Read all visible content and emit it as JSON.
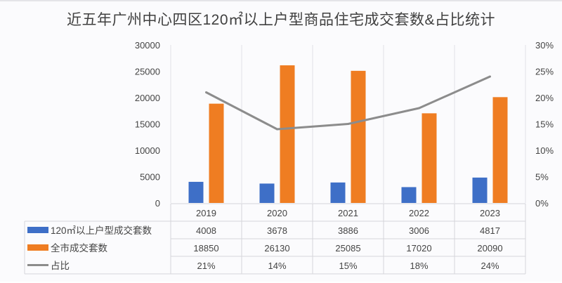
{
  "chart_data": {
    "type": "bar",
    "title": "近五年广州中心四区120㎡以上户型商品住宅成交套数&占比统计",
    "categories": [
      "2019",
      "2020",
      "2021",
      "2022",
      "2023"
    ],
    "series": [
      {
        "name": "120㎡以上户型成交套数",
        "type": "bar",
        "axis": "left",
        "color": "#3e6fc7",
        "values": [
          4008,
          3678,
          3886,
          3006,
          4817
        ],
        "labels": [
          "4008",
          "3678",
          "3886",
          "3006",
          "4817"
        ]
      },
      {
        "name": "全市成交套数",
        "type": "bar",
        "axis": "left",
        "color": "#ef7d22",
        "values": [
          18850,
          26130,
          25085,
          17020,
          20090
        ],
        "labels": [
          "18850",
          "26130",
          "25085",
          "17020",
          "20090"
        ]
      },
      {
        "name": "占比",
        "type": "line",
        "axis": "right",
        "color": "#8c8c8c",
        "values": [
          21,
          14,
          15,
          18,
          24
        ],
        "labels": [
          "21%",
          "14%",
          "15%",
          "18%",
          "24%"
        ]
      }
    ],
    "ylim": [
      0,
      30000
    ],
    "yticks": [
      "0",
      "5000",
      "10000",
      "15000",
      "20000",
      "25000",
      "30000"
    ],
    "y2lim": [
      0,
      30
    ],
    "y2ticks": [
      "0%",
      "5%",
      "10%",
      "15%",
      "20%",
      "25%",
      "30%"
    ],
    "grid": false,
    "legend": "data-table"
  }
}
